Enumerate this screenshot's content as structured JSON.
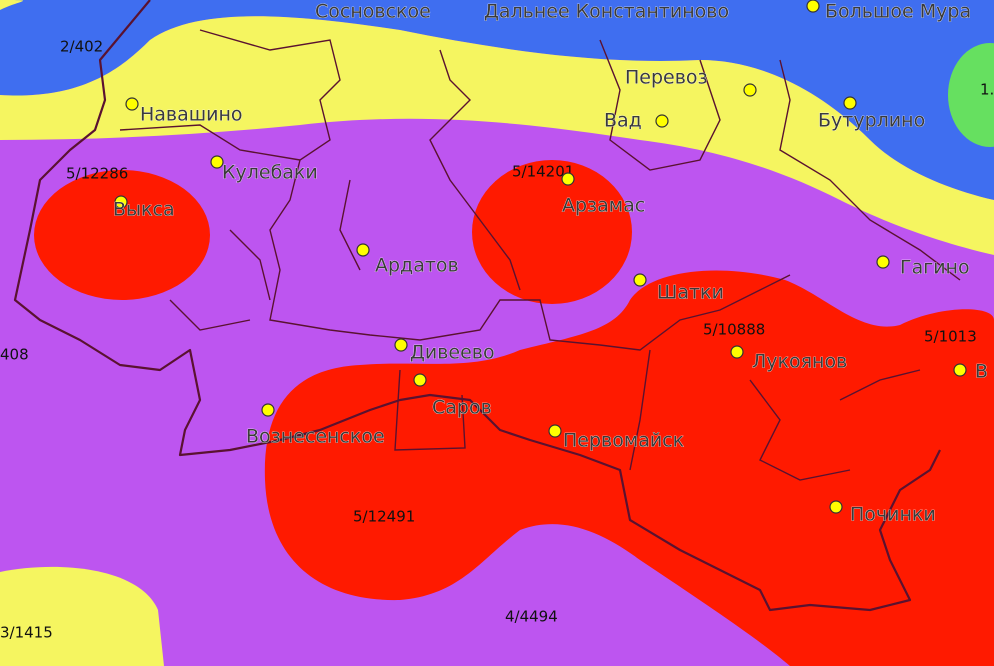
{
  "towns": [
    "Навашино",
    "Кулебаки",
    "Выкса",
    "Перевоз",
    "Вад",
    "Бутурлино",
    "Арзамас",
    "Ардатов",
    "Шатки",
    "Гагино",
    "Дивеево",
    "Лукоянов",
    "Саров",
    "Вознесенское",
    "Первомайск",
    "Починки",
    "Сосновское",
    "Дальнее Константиново",
    "Большое Мура",
    "В"
  ],
  "zone_labels": [
    "2/402",
    "5/12286",
    "5/14201",
    "5/10888",
    "5/1013",
    "408",
    "5/12491",
    "4/4494",
    "3/1415",
    "1."
  ]
}
